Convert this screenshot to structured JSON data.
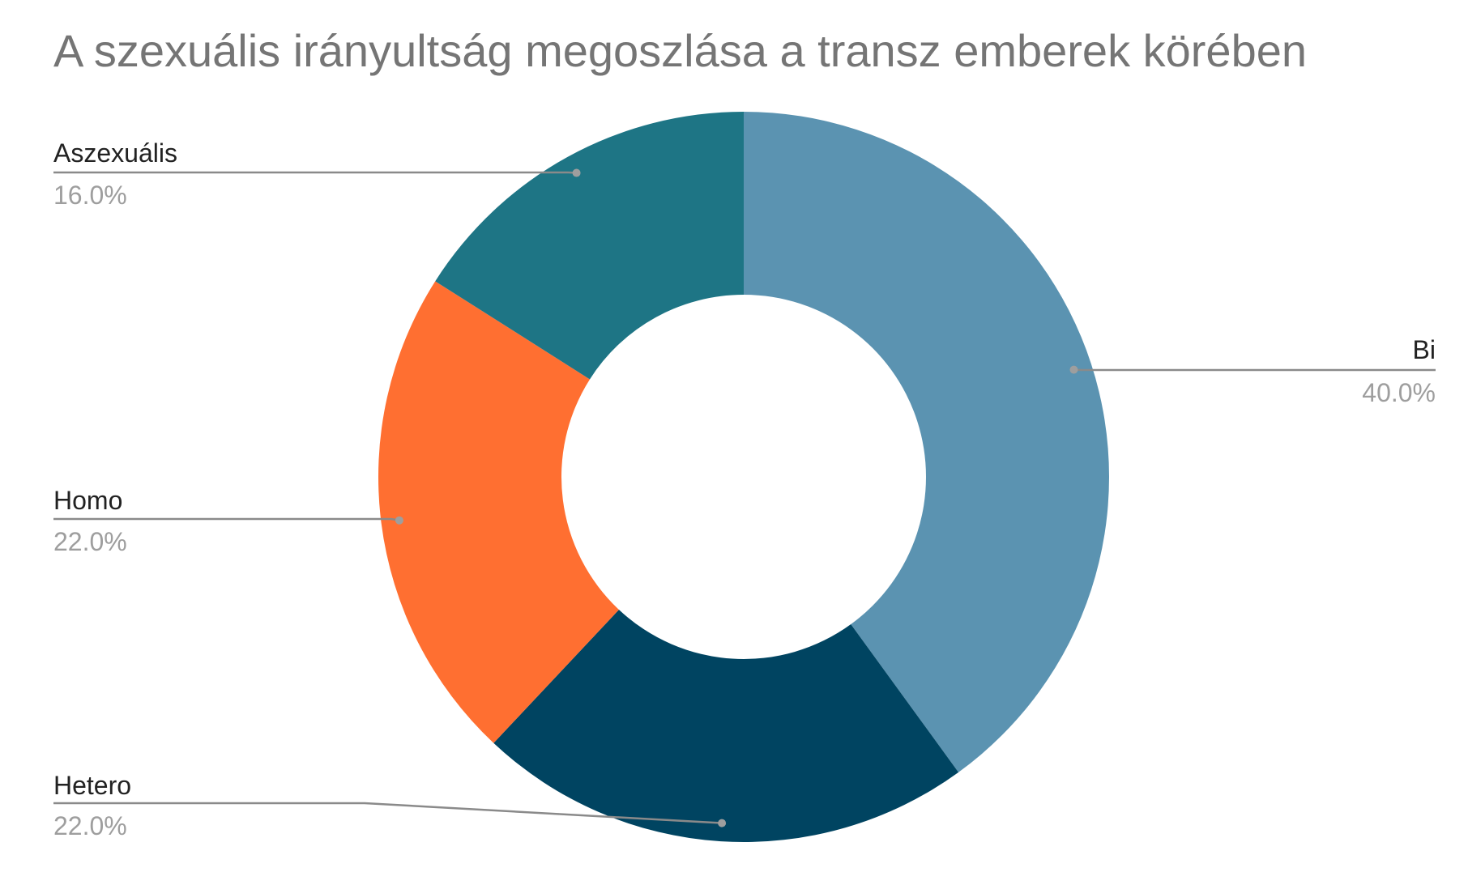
{
  "chart_data": {
    "type": "pie",
    "title": "A szexuális irányultság megoszlása a transz emberek körében",
    "slices": [
      {
        "label": "Bi",
        "value": 40.0,
        "percent_label": "40.0%",
        "color": "#5b93b1"
      },
      {
        "label": "Hetero",
        "value": 22.0,
        "percent_label": "22.0%",
        "color": "#004461"
      },
      {
        "label": "Homo",
        "value": 22.0,
        "percent_label": "22.0%",
        "color": "#ff6f31"
      },
      {
        "label": "Aszexuális",
        "value": 16.0,
        "percent_label": "16.0%",
        "color": "#1e7585"
      }
    ],
    "donut": true,
    "start_angle": "12 o'clock",
    "direction": "clockwise"
  }
}
